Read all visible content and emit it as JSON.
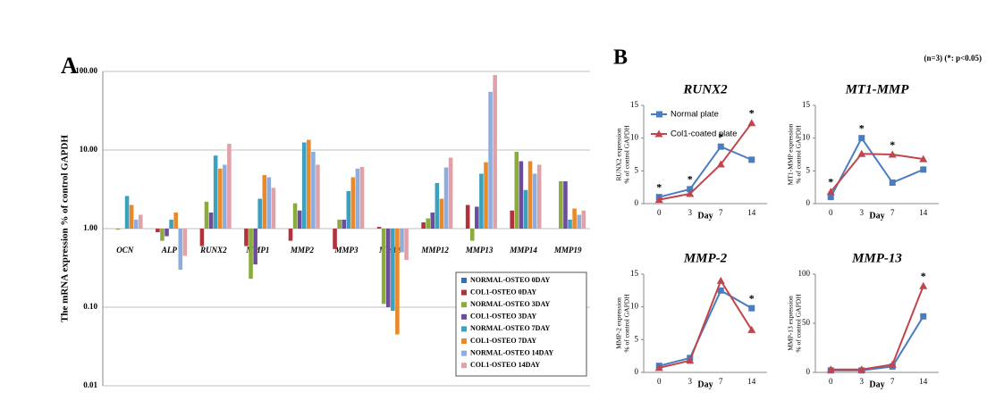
{
  "panel_labels": [
    "A",
    "B"
  ],
  "note": "(n=3) (*: p<0.05)",
  "chart_data": [
    {
      "type": "bar",
      "ylabel": "The mRNA expression % of control GAPDH",
      "log_scale": true,
      "baseline": 1,
      "grid": true,
      "categories": [
        "OCN",
        "ALP",
        "RUNX2",
        "MMP1",
        "MMP2",
        "MMP3",
        "MMP9",
        "MMP12",
        "MMP13",
        "MMP14",
        "MMP19"
      ],
      "ylim": [
        0.01,
        100
      ],
      "yticks": [
        0.01,
        {
          "value": 0.1,
          "label": "0.10"
        },
        {
          "value": 1,
          "label": "1.00"
        },
        {
          "value": 10,
          "label": "10.00"
        },
        {
          "value": 100,
          "label": "100.00"
        }
      ],
      "series": [
        {
          "name": "NORMAL-OSTEO 0DAY",
          "color": "#3b6db3",
          "values": [
            1,
            1,
            1,
            1,
            1,
            1,
            1,
            1,
            1,
            1,
            1
          ]
        },
        {
          "name": "COL1-OSTEO 0DAY",
          "color": "#b2323c",
          "values": [
            1,
            0.9,
            0.6,
            0.6,
            0.7,
            0.55,
            1.05,
            1.2,
            2.0,
            1.7,
            1.0
          ]
        },
        {
          "name": "NORMAL-OSTEO 3DAY",
          "color": "#8bab3c",
          "values": [
            0.97,
            0.7,
            2.2,
            0.23,
            2.1,
            1.3,
            0.11,
            1.35,
            0.7,
            9.5,
            4.0
          ]
        },
        {
          "name": "COL1-OSTEO 3DAY",
          "color": "#6b4d9b",
          "values": [
            1,
            0.8,
            1.6,
            0.35,
            1.7,
            1.3,
            0.1,
            1.6,
            1.9,
            7.2,
            4.0
          ]
        },
        {
          "name": "NORMAL-OSTEO 7DAY",
          "color": "#3aa1bf",
          "values": [
            2.6,
            1.3,
            8.5,
            2.4,
            12.5,
            3.0,
            0.09,
            3.8,
            5.0,
            3.1,
            1.3
          ]
        },
        {
          "name": "COL1-OSTEO 7DAY",
          "color": "#e88a2c",
          "values": [
            2.0,
            1.6,
            5.8,
            4.8,
            13.5,
            4.5,
            0.045,
            2.4,
            7.0,
            7.2,
            1.8
          ]
        },
        {
          "name": "NORMAL-OSTEO 14DAY",
          "color": "#8cadde",
          "values": [
            1.3,
            0.3,
            6.5,
            4.5,
            9.5,
            5.8,
            0.5,
            6.0,
            55,
            5.0,
            1.5
          ]
        },
        {
          "name": "COL1-OSTEO 14DAY",
          "color": "#e0a2a9",
          "values": [
            1.5,
            0.45,
            12,
            3.3,
            6.5,
            6.1,
            0.4,
            8.0,
            90,
            6.5,
            1.7
          ]
        }
      ]
    },
    {
      "type": "line",
      "title": "RUNX2",
      "ylabel": [
        "RUNX2 expression",
        "% of control GAPDH"
      ],
      "xlabel": "Day",
      "legend": true,
      "categories": [
        "0",
        "3",
        "7",
        "14"
      ],
      "ylim": [
        0,
        15
      ],
      "yticks": [
        0,
        5,
        10,
        15
      ],
      "series": [
        {
          "name": "Normal plate",
          "color": "#4a7cc0",
          "marker": "square",
          "values": [
            1,
            2.2,
            8.7,
            6.7
          ]
        },
        {
          "name": "Col1-coated plate",
          "color": "#c0454d",
          "marker": "triangle",
          "values": [
            0.6,
            1.5,
            6,
            12.3
          ]
        }
      ],
      "annotations": [
        {
          "text": "*",
          "category": "0"
        },
        {
          "text": "*",
          "category": "3"
        },
        {
          "text": "*",
          "category": "7"
        },
        {
          "text": "*",
          "category": "14"
        }
      ]
    },
    {
      "type": "line",
      "title": "MT1-MMP",
      "ylabel": [
        "MT1-MMP expression",
        "% of control GAPDH"
      ],
      "xlabel": "Day",
      "legend": false,
      "categories": [
        "0",
        "3",
        "7",
        "14"
      ],
      "ylim": [
        0,
        15
      ],
      "yticks": [
        0,
        5,
        10,
        15
      ],
      "series": [
        {
          "name": "Normal plate",
          "color": "#4a7cc0",
          "marker": "square",
          "values": [
            1,
            10,
            3.2,
            5.2
          ]
        },
        {
          "name": "Col1-coated plate",
          "color": "#c0454d",
          "marker": "triangle",
          "values": [
            1.8,
            7.6,
            7.5,
            6.8
          ]
        }
      ],
      "annotations": [
        {
          "text": "*",
          "category": "0"
        },
        {
          "text": "*",
          "category": "3"
        },
        {
          "text": "*",
          "category": "7"
        }
      ]
    },
    {
      "type": "line",
      "title": "MMP-2",
      "ylabel": [
        "MMP-2 expression",
        "% of control GAPDH"
      ],
      "xlabel": "Day",
      "legend": false,
      "categories": [
        "0",
        "3",
        "7",
        "14"
      ],
      "ylim": [
        0,
        15
      ],
      "yticks": [
        0,
        5,
        10,
        15
      ],
      "series": [
        {
          "name": "Normal plate",
          "color": "#4a7cc0",
          "marker": "square",
          "values": [
            1,
            2.2,
            12.5,
            9.8
          ]
        },
        {
          "name": "Col1-coated plate",
          "color": "#c0454d",
          "marker": "triangle",
          "values": [
            0.7,
            1.8,
            14,
            6.5
          ]
        }
      ],
      "annotations": [
        {
          "text": "*",
          "category": "14"
        }
      ]
    },
    {
      "type": "line",
      "title": "MMP-13",
      "ylabel": [
        "MMP-13 expression",
        "% of control GAPDH"
      ],
      "xlabel": "Day",
      "legend": false,
      "categories": [
        "0",
        "3",
        "7",
        "14"
      ],
      "ylim": [
        0,
        100
      ],
      "yticks": [
        0,
        50,
        100
      ],
      "series": [
        {
          "name": "Normal plate",
          "color": "#4a7cc0",
          "marker": "square",
          "values": [
            2,
            2,
            6,
            57
          ]
        },
        {
          "name": "Col1-coated plate",
          "color": "#c0454d",
          "marker": "triangle",
          "values": [
            3,
            3,
            8,
            88
          ]
        }
      ],
      "annotations": [
        {
          "text": "*",
          "category": "14"
        }
      ]
    }
  ]
}
